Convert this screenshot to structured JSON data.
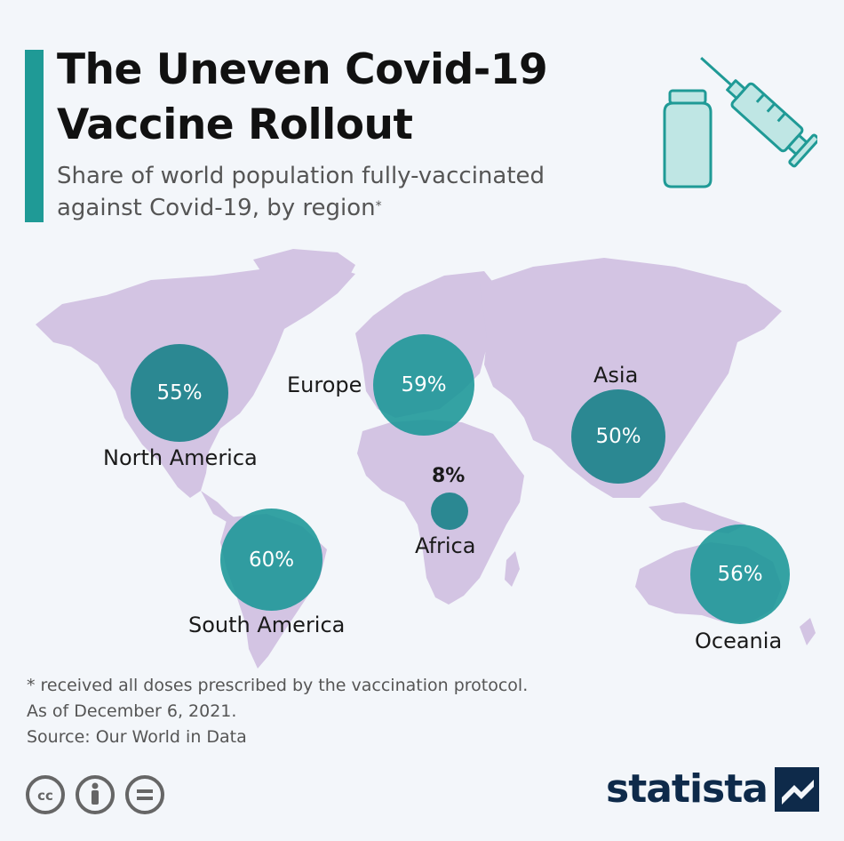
{
  "header": {
    "title": "The Uneven Covid-19 Vaccine Rollout",
    "subtitle": "Share of world population fully-vaccinated against Covid-19, by region",
    "subtitle_marker": "*"
  },
  "icons": {
    "vaccine": "vaccine-vial-syringe-icon",
    "license": [
      "cc-icon",
      "attribution-icon",
      "no-derivatives-icon"
    ],
    "brand": "statista-logo-icon"
  },
  "colors": {
    "accent": "#1f9a96",
    "bubble": "#138086",
    "land": "#d3c4e3",
    "background": "#f3f6fa",
    "brand": "#0e2a4a"
  },
  "regions": [
    {
      "name": "North America",
      "value": 55,
      "label": "55%"
    },
    {
      "name": "Europe",
      "value": 59,
      "label": "59%"
    },
    {
      "name": "Asia",
      "value": 50,
      "label": "50%"
    },
    {
      "name": "Africa",
      "value": 8,
      "label": "8%"
    },
    {
      "name": "South America",
      "value": 60,
      "label": "60%"
    },
    {
      "name": "Oceania",
      "value": 56,
      "label": "56%"
    }
  ],
  "footer": {
    "footnote": "* received all doses prescribed by the vaccination protocol.",
    "date": "As of December 6, 2021.",
    "source": "Source: Our World in Data",
    "brand": "statista"
  }
}
